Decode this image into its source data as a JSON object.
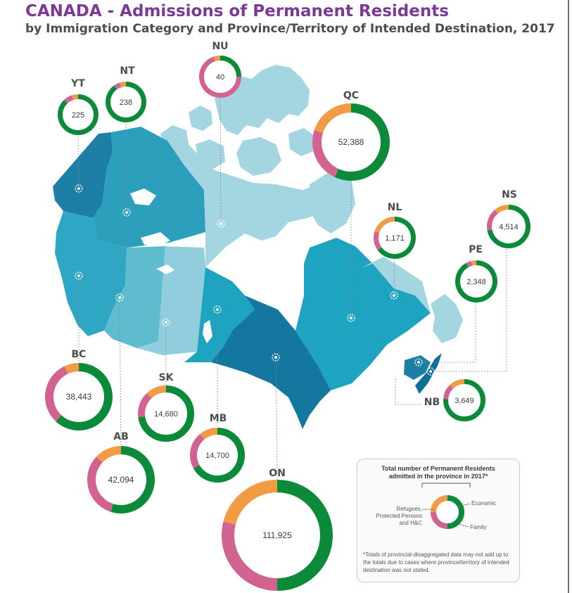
{
  "title": "CANADA - Admissions of Permanent Residents",
  "subtitle": "by Immigration Category and Province/Territory of Intended Destination, 2017",
  "colors": {
    "economic": "#0b8a39",
    "family": "#d2628f",
    "refugees": "#f19b45"
  },
  "provinces": [
    {
      "code": "YT",
      "total": "225",
      "economic": 0.88,
      "family": 0.07,
      "refugees": 0.05
    },
    {
      "code": "NT",
      "total": "238",
      "economic": 0.9,
      "family": 0.05,
      "refugees": 0.05
    },
    {
      "code": "NU",
      "total": "40",
      "economic": 0.25,
      "family": 0.7,
      "refugees": 0.05
    },
    {
      "code": "QC",
      "total": "52,388",
      "economic": 0.57,
      "family": 0.23,
      "refugees": 0.2
    },
    {
      "code": "NL",
      "total": "1,171",
      "economic": 0.65,
      "family": 0.15,
      "refugees": 0.2
    },
    {
      "code": "NS",
      "total": "4,514",
      "economic": 0.72,
      "family": 0.17,
      "refugees": 0.11
    },
    {
      "code": "PE",
      "total": "2,348",
      "economic": 0.92,
      "family": 0.04,
      "refugees": 0.04
    },
    {
      "code": "NB",
      "total": "3,649",
      "economic": 0.76,
      "family": 0.12,
      "refugees": 0.12
    },
    {
      "code": "BC",
      "total": "38,443",
      "economic": 0.62,
      "family": 0.31,
      "refugees": 0.07
    },
    {
      "code": "AB",
      "total": "42,094",
      "economic": 0.55,
      "family": 0.32,
      "refugees": 0.13
    },
    {
      "code": "SK",
      "total": "14,680",
      "economic": 0.73,
      "family": 0.15,
      "refugees": 0.12
    },
    {
      "code": "MB",
      "total": "14,700",
      "economic": 0.67,
      "family": 0.22,
      "refugees": 0.11
    },
    {
      "code": "ON",
      "total": "111,925",
      "economic": 0.5,
      "family": 0.29,
      "refugees": 0.21
    }
  ],
  "legend": {
    "title_line1": "Total number of Permanent Residents",
    "title_line2": "admitted in the province in 2017*",
    "refugees_line1": "Refugees,",
    "refugees_line2": "Protected Persons",
    "refugees_line3": "and H&C",
    "economic_label": "Economic",
    "family_label": "Family",
    "note": "*Totals of provincial-disaggregated data may not add up to the totals due to cases where province/territory of intended destination was not stated."
  }
}
